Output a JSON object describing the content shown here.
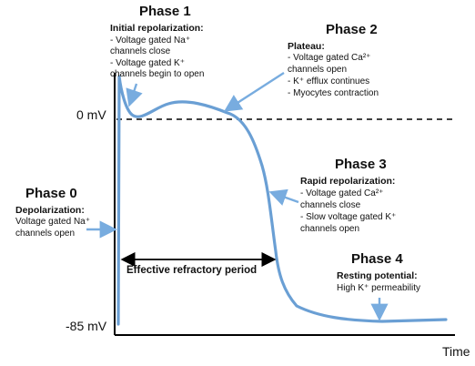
{
  "colors": {
    "curve": "#6a9fd4",
    "arrow": "#78acdf",
    "text": "#111111",
    "axis": "#000000"
  },
  "axes": {
    "zero_label": "0 mV",
    "rest_label": "-85 mV",
    "x_label": "Time"
  },
  "phases": [
    {
      "title": "Phase 1",
      "subtitle": "Initial repolarization:",
      "items": [
        "- Voltage gated Na⁺",
        "channels close",
        "- Voltage gated K⁺",
        "channels begin to open"
      ]
    },
    {
      "title": "Phase 2",
      "subtitle": "Plateau:",
      "items": [
        "- Voltage gated Ca²⁺",
        "channels open",
        "- K⁺ efflux continues",
        "- Myocytes contraction"
      ]
    },
    {
      "title": "Phase 0",
      "subtitle": "Depolarization:",
      "items": [
        "Voltage gated Na⁺",
        "channels open"
      ]
    },
    {
      "title": "Phase 3",
      "subtitle": "Rapid repolarization:",
      "items": [
        "- Voltage gated Ca²⁺",
        "channels close",
        "- Slow voltage gated K⁺",
        "channels open"
      ]
    },
    {
      "title": "Phase 4",
      "subtitle": "Resting potential:",
      "items": [
        "High K⁺ permeability"
      ]
    }
  ],
  "refractory_label": "Effective refractory period"
}
